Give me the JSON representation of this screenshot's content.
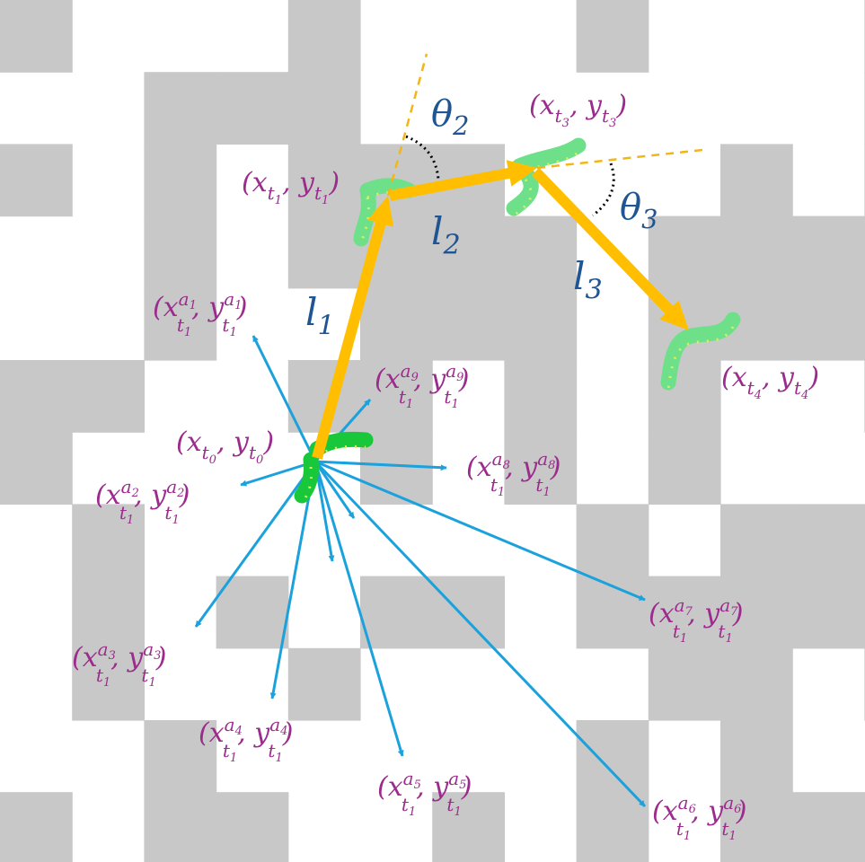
{
  "colors": {
    "cell": "#c8c8c8",
    "background": "#ffffff",
    "path": "#ffbf00",
    "sample": "#1ba1dc",
    "label": "#9b2b8c",
    "symbol": "#1f5592",
    "dash": "#f2b617",
    "agent": "#6ee08a",
    "agent_start": "#19c83a"
  },
  "trajectory": {
    "points": [
      {
        "id": "t0",
        "x": "x",
        "y": "y",
        "sub": "t",
        "subsub": "0"
      },
      {
        "id": "t1",
        "x": "x",
        "y": "y",
        "sub": "t",
        "subsub": "1"
      },
      {
        "id": "t3",
        "x": "x",
        "y": "y",
        "sub": "t",
        "subsub": "3"
      },
      {
        "id": "t4",
        "x": "x",
        "y": "y",
        "sub": "t",
        "subsub": "4"
      }
    ],
    "segments": [
      {
        "name": "l",
        "index": "1"
      },
      {
        "name": "l",
        "index": "2"
      },
      {
        "name": "l",
        "index": "3"
      }
    ],
    "angles": [
      {
        "name": "θ",
        "index": "2"
      },
      {
        "name": "θ",
        "index": "3"
      }
    ]
  },
  "samples": {
    "labels": [
      {
        "sup": "a",
        "supsub": "1"
      },
      {
        "sup": "a",
        "supsub": "2"
      },
      {
        "sup": "a",
        "supsub": "3"
      },
      {
        "sup": "a",
        "supsub": "4"
      },
      {
        "sup": "a",
        "supsub": "5"
      },
      {
        "sup": "a",
        "supsub": "6"
      },
      {
        "sup": "a",
        "supsub": "7"
      },
      {
        "sup": "a",
        "supsub": "8"
      },
      {
        "sup": "a",
        "supsub": "9"
      }
    ]
  }
}
